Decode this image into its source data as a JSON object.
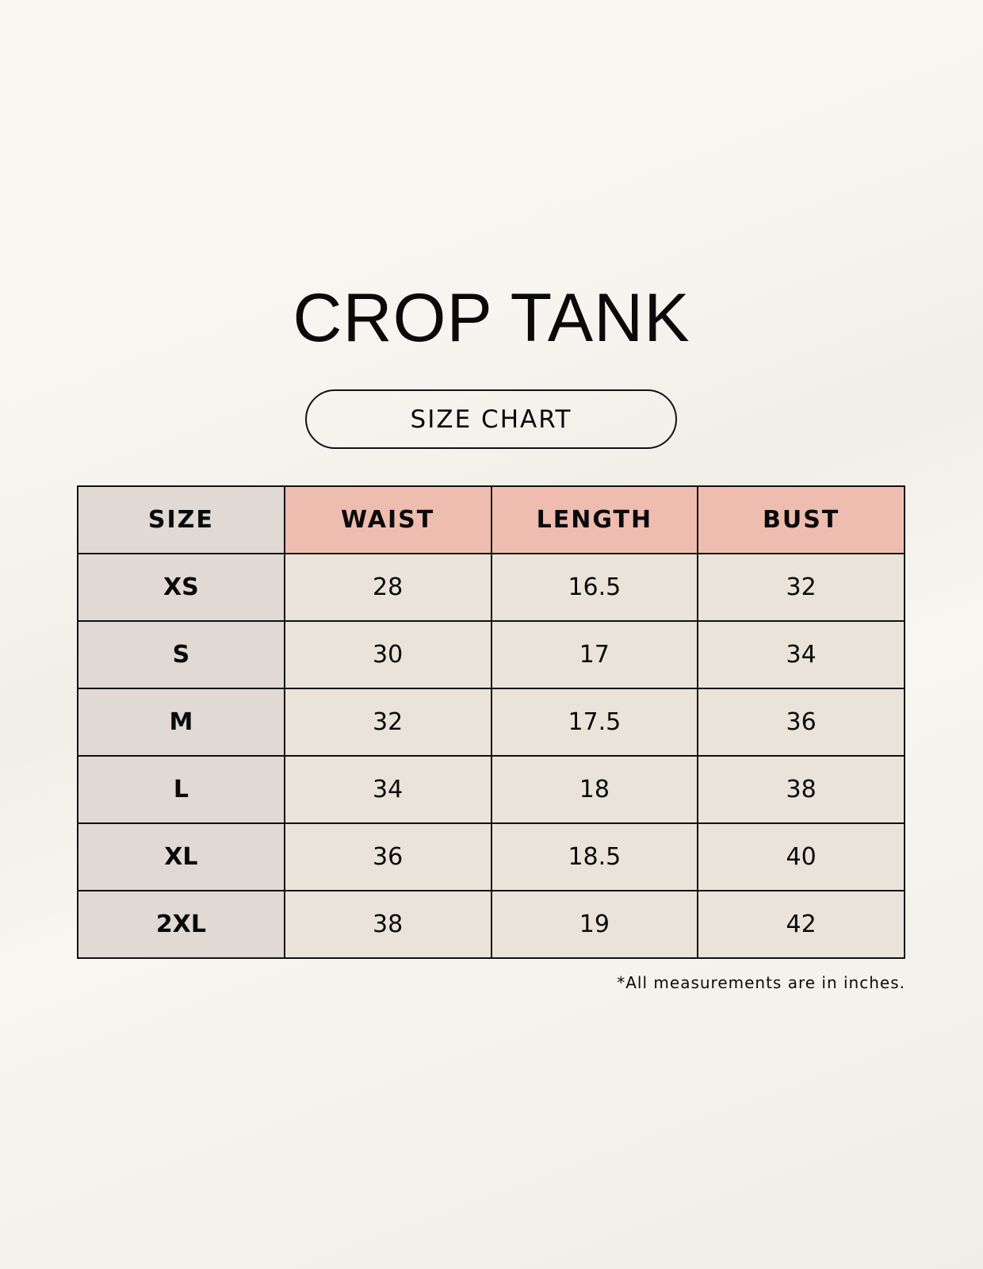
{
  "title": "CROP TANK",
  "subtitle": "SIZE CHART",
  "colors": {
    "header_size_bg": "#e1d9d4",
    "header_measure_bg": "#efbdb0",
    "cell_bg": "#eae3d9",
    "border": "#111111"
  },
  "table": {
    "headers": [
      "SIZE",
      "WAIST",
      "LENGTH",
      "BUST"
    ],
    "rows": [
      [
        "XS",
        "28",
        "16.5",
        "32"
      ],
      [
        "S",
        "30",
        "17",
        "34"
      ],
      [
        "M",
        "32",
        "17.5",
        "36"
      ],
      [
        "L",
        "34",
        "18",
        "38"
      ],
      [
        "XL",
        "36",
        "18.5",
        "40"
      ],
      [
        "2XL",
        "38",
        "19",
        "42"
      ]
    ]
  },
  "note": "*All measurements are in inches."
}
